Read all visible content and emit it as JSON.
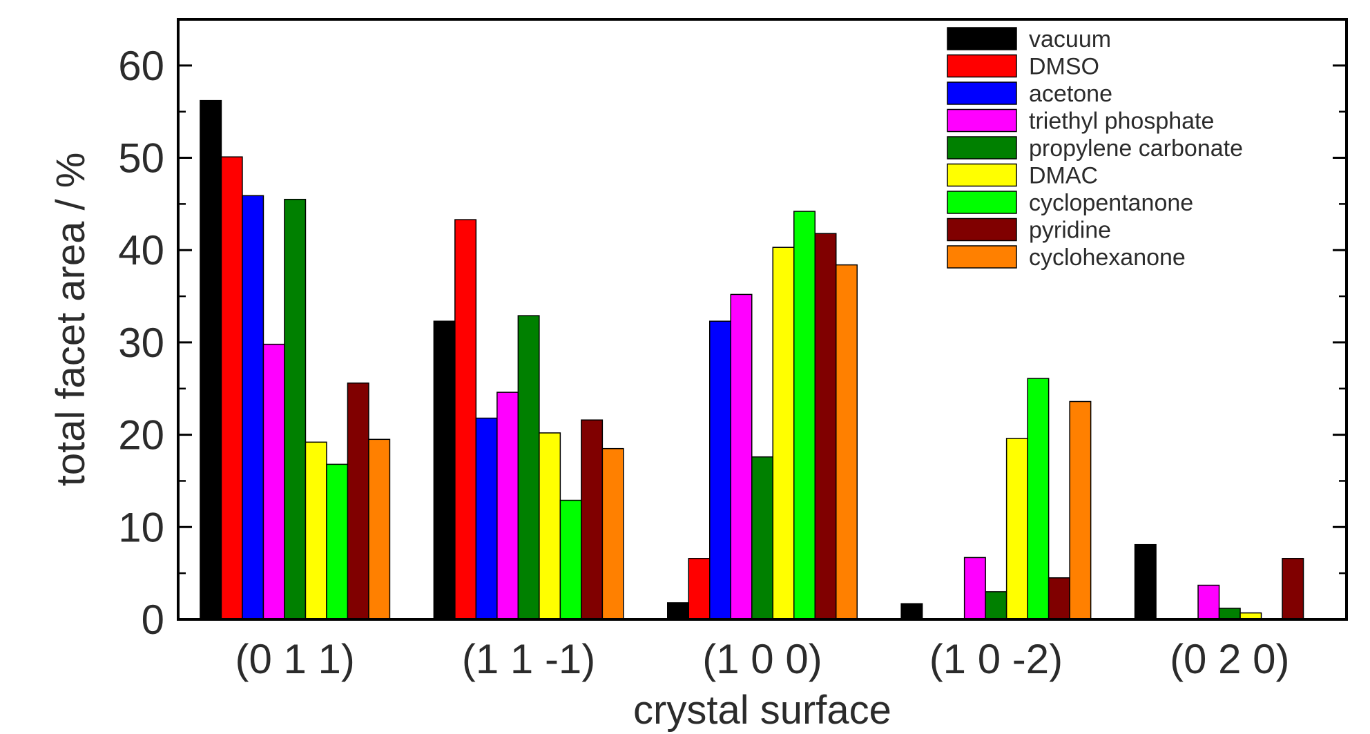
{
  "chart_data": {
    "type": "bar",
    "title": "",
    "xlabel": "crystal surface",
    "ylabel": "total facet area / %",
    "ylim": [
      0,
      65
    ],
    "yticks": [
      0,
      10,
      20,
      30,
      40,
      50,
      60
    ],
    "grid": false,
    "legend_position": "top-right",
    "categories": [
      "(0 1 1)",
      "(1 1 -1)",
      "(1 0 0)",
      "(1 0 -2)",
      "(0 2 0)"
    ],
    "series": [
      {
        "name": "vacuum",
        "color": "#000000",
        "values": [
          56.2,
          32.3,
          1.8,
          1.7,
          8.1
        ]
      },
      {
        "name": "DMSO",
        "color": "#ff0000",
        "values": [
          50.1,
          43.3,
          6.6,
          0,
          0
        ]
      },
      {
        "name": "acetone",
        "color": "#0000ff",
        "values": [
          45.9,
          21.8,
          32.3,
          0,
          0
        ]
      },
      {
        "name": "triethyl phosphate",
        "color": "#ff00ff",
        "values": [
          29.8,
          24.6,
          35.2,
          6.7,
          3.7
        ]
      },
      {
        "name": "propylene carbonate",
        "color": "#008000",
        "values": [
          45.5,
          32.9,
          17.6,
          3.0,
          1.2
        ]
      },
      {
        "name": "DMAC",
        "color": "#ffff00",
        "values": [
          19.2,
          20.2,
          40.3,
          19.6,
          0.7
        ]
      },
      {
        "name": "cyclopentanone",
        "color": "#00ff00",
        "values": [
          16.8,
          12.9,
          44.2,
          26.1,
          0
        ]
      },
      {
        "name": "pyridine",
        "color": "#800000",
        "values": [
          25.6,
          21.6,
          41.8,
          4.5,
          6.6
        ]
      },
      {
        "name": "cyclohexanone",
        "color": "#ff8000",
        "values": [
          19.5,
          18.5,
          38.4,
          23.6,
          0
        ]
      }
    ]
  }
}
